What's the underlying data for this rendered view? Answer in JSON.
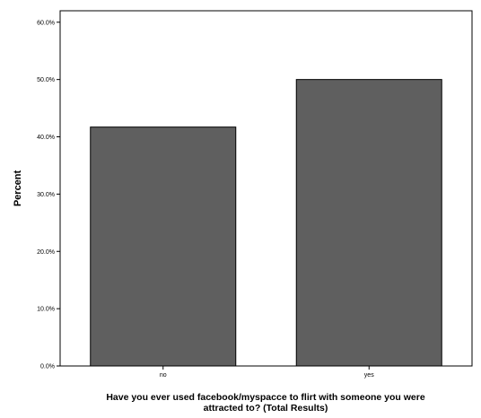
{
  "chart_data": {
    "type": "bar",
    "categories": [
      "no",
      "yes"
    ],
    "values": [
      41.7,
      50.0
    ],
    "ylabel": "Percent",
    "xlabel_lines": [
      "Have you ever used facebook/myspacce to flirt with someone you were",
      "attracted to? (Total Results)"
    ],
    "ylim": [
      0,
      62
    ],
    "yticks": [
      0,
      10,
      20,
      30,
      40,
      50,
      60
    ],
    "ytick_labels": [
      "0.0%",
      "10.0%",
      "20.0%",
      "30.0%",
      "40.0%",
      "50.0%",
      "60.0%"
    ],
    "bar_color": "#5f5f5f",
    "grid": false,
    "legend": "none"
  }
}
